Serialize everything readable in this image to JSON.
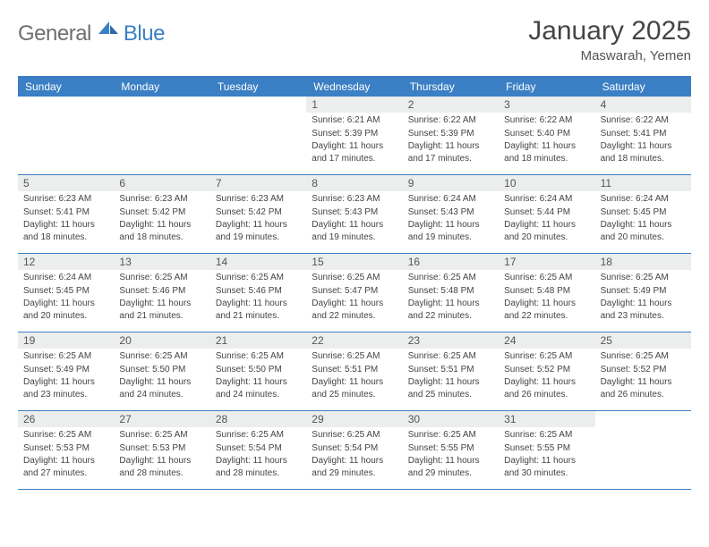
{
  "logo": {
    "general": "General",
    "blue": "Blue"
  },
  "title": "January 2025",
  "location": "Maswarah, Yemen",
  "colors": {
    "brand_blue": "#3b7fc4",
    "logo_grey": "#6f6f6f",
    "header_bg": "#3b7fc4",
    "header_text": "#ffffff",
    "daynum_bg": "#eceded",
    "daynum_text": "#555555",
    "body_text": "#444444",
    "border": "#3b7fc4",
    "background": "#ffffff"
  },
  "dow": [
    "Sunday",
    "Monday",
    "Tuesday",
    "Wednesday",
    "Thursday",
    "Friday",
    "Saturday"
  ],
  "leading_blanks": 3,
  "days": [
    {
      "n": "1",
      "sunrise": "6:21 AM",
      "sunset": "5:39 PM",
      "daylight": "Daylight: 11 hours and 17 minutes."
    },
    {
      "n": "2",
      "sunrise": "6:22 AM",
      "sunset": "5:39 PM",
      "daylight": "Daylight: 11 hours and 17 minutes."
    },
    {
      "n": "3",
      "sunrise": "6:22 AM",
      "sunset": "5:40 PM",
      "daylight": "Daylight: 11 hours and 18 minutes."
    },
    {
      "n": "4",
      "sunrise": "6:22 AM",
      "sunset": "5:41 PM",
      "daylight": "Daylight: 11 hours and 18 minutes."
    },
    {
      "n": "5",
      "sunrise": "6:23 AM",
      "sunset": "5:41 PM",
      "daylight": "Daylight: 11 hours and 18 minutes."
    },
    {
      "n": "6",
      "sunrise": "6:23 AM",
      "sunset": "5:42 PM",
      "daylight": "Daylight: 11 hours and 18 minutes."
    },
    {
      "n": "7",
      "sunrise": "6:23 AM",
      "sunset": "5:42 PM",
      "daylight": "Daylight: 11 hours and 19 minutes."
    },
    {
      "n": "8",
      "sunrise": "6:23 AM",
      "sunset": "5:43 PM",
      "daylight": "Daylight: 11 hours and 19 minutes."
    },
    {
      "n": "9",
      "sunrise": "6:24 AM",
      "sunset": "5:43 PM",
      "daylight": "Daylight: 11 hours and 19 minutes."
    },
    {
      "n": "10",
      "sunrise": "6:24 AM",
      "sunset": "5:44 PM",
      "daylight": "Daylight: 11 hours and 20 minutes."
    },
    {
      "n": "11",
      "sunrise": "6:24 AM",
      "sunset": "5:45 PM",
      "daylight": "Daylight: 11 hours and 20 minutes."
    },
    {
      "n": "12",
      "sunrise": "6:24 AM",
      "sunset": "5:45 PM",
      "daylight": "Daylight: 11 hours and 20 minutes."
    },
    {
      "n": "13",
      "sunrise": "6:25 AM",
      "sunset": "5:46 PM",
      "daylight": "Daylight: 11 hours and 21 minutes."
    },
    {
      "n": "14",
      "sunrise": "6:25 AM",
      "sunset": "5:46 PM",
      "daylight": "Daylight: 11 hours and 21 minutes."
    },
    {
      "n": "15",
      "sunrise": "6:25 AM",
      "sunset": "5:47 PM",
      "daylight": "Daylight: 11 hours and 22 minutes."
    },
    {
      "n": "16",
      "sunrise": "6:25 AM",
      "sunset": "5:48 PM",
      "daylight": "Daylight: 11 hours and 22 minutes."
    },
    {
      "n": "17",
      "sunrise": "6:25 AM",
      "sunset": "5:48 PM",
      "daylight": "Daylight: 11 hours and 22 minutes."
    },
    {
      "n": "18",
      "sunrise": "6:25 AM",
      "sunset": "5:49 PM",
      "daylight": "Daylight: 11 hours and 23 minutes."
    },
    {
      "n": "19",
      "sunrise": "6:25 AM",
      "sunset": "5:49 PM",
      "daylight": "Daylight: 11 hours and 23 minutes."
    },
    {
      "n": "20",
      "sunrise": "6:25 AM",
      "sunset": "5:50 PM",
      "daylight": "Daylight: 11 hours and 24 minutes."
    },
    {
      "n": "21",
      "sunrise": "6:25 AM",
      "sunset": "5:50 PM",
      "daylight": "Daylight: 11 hours and 24 minutes."
    },
    {
      "n": "22",
      "sunrise": "6:25 AM",
      "sunset": "5:51 PM",
      "daylight": "Daylight: 11 hours and 25 minutes."
    },
    {
      "n": "23",
      "sunrise": "6:25 AM",
      "sunset": "5:51 PM",
      "daylight": "Daylight: 11 hours and 25 minutes."
    },
    {
      "n": "24",
      "sunrise": "6:25 AM",
      "sunset": "5:52 PM",
      "daylight": "Daylight: 11 hours and 26 minutes."
    },
    {
      "n": "25",
      "sunrise": "6:25 AM",
      "sunset": "5:52 PM",
      "daylight": "Daylight: 11 hours and 26 minutes."
    },
    {
      "n": "26",
      "sunrise": "6:25 AM",
      "sunset": "5:53 PM",
      "daylight": "Daylight: 11 hours and 27 minutes."
    },
    {
      "n": "27",
      "sunrise": "6:25 AM",
      "sunset": "5:53 PM",
      "daylight": "Daylight: 11 hours and 28 minutes."
    },
    {
      "n": "28",
      "sunrise": "6:25 AM",
      "sunset": "5:54 PM",
      "daylight": "Daylight: 11 hours and 28 minutes."
    },
    {
      "n": "29",
      "sunrise": "6:25 AM",
      "sunset": "5:54 PM",
      "daylight": "Daylight: 11 hours and 29 minutes."
    },
    {
      "n": "30",
      "sunrise": "6:25 AM",
      "sunset": "5:55 PM",
      "daylight": "Daylight: 11 hours and 29 minutes."
    },
    {
      "n": "31",
      "sunrise": "6:25 AM",
      "sunset": "5:55 PM",
      "daylight": "Daylight: 11 hours and 30 minutes."
    }
  ],
  "labels": {
    "sunrise": "Sunrise:",
    "sunset": "Sunset:"
  }
}
